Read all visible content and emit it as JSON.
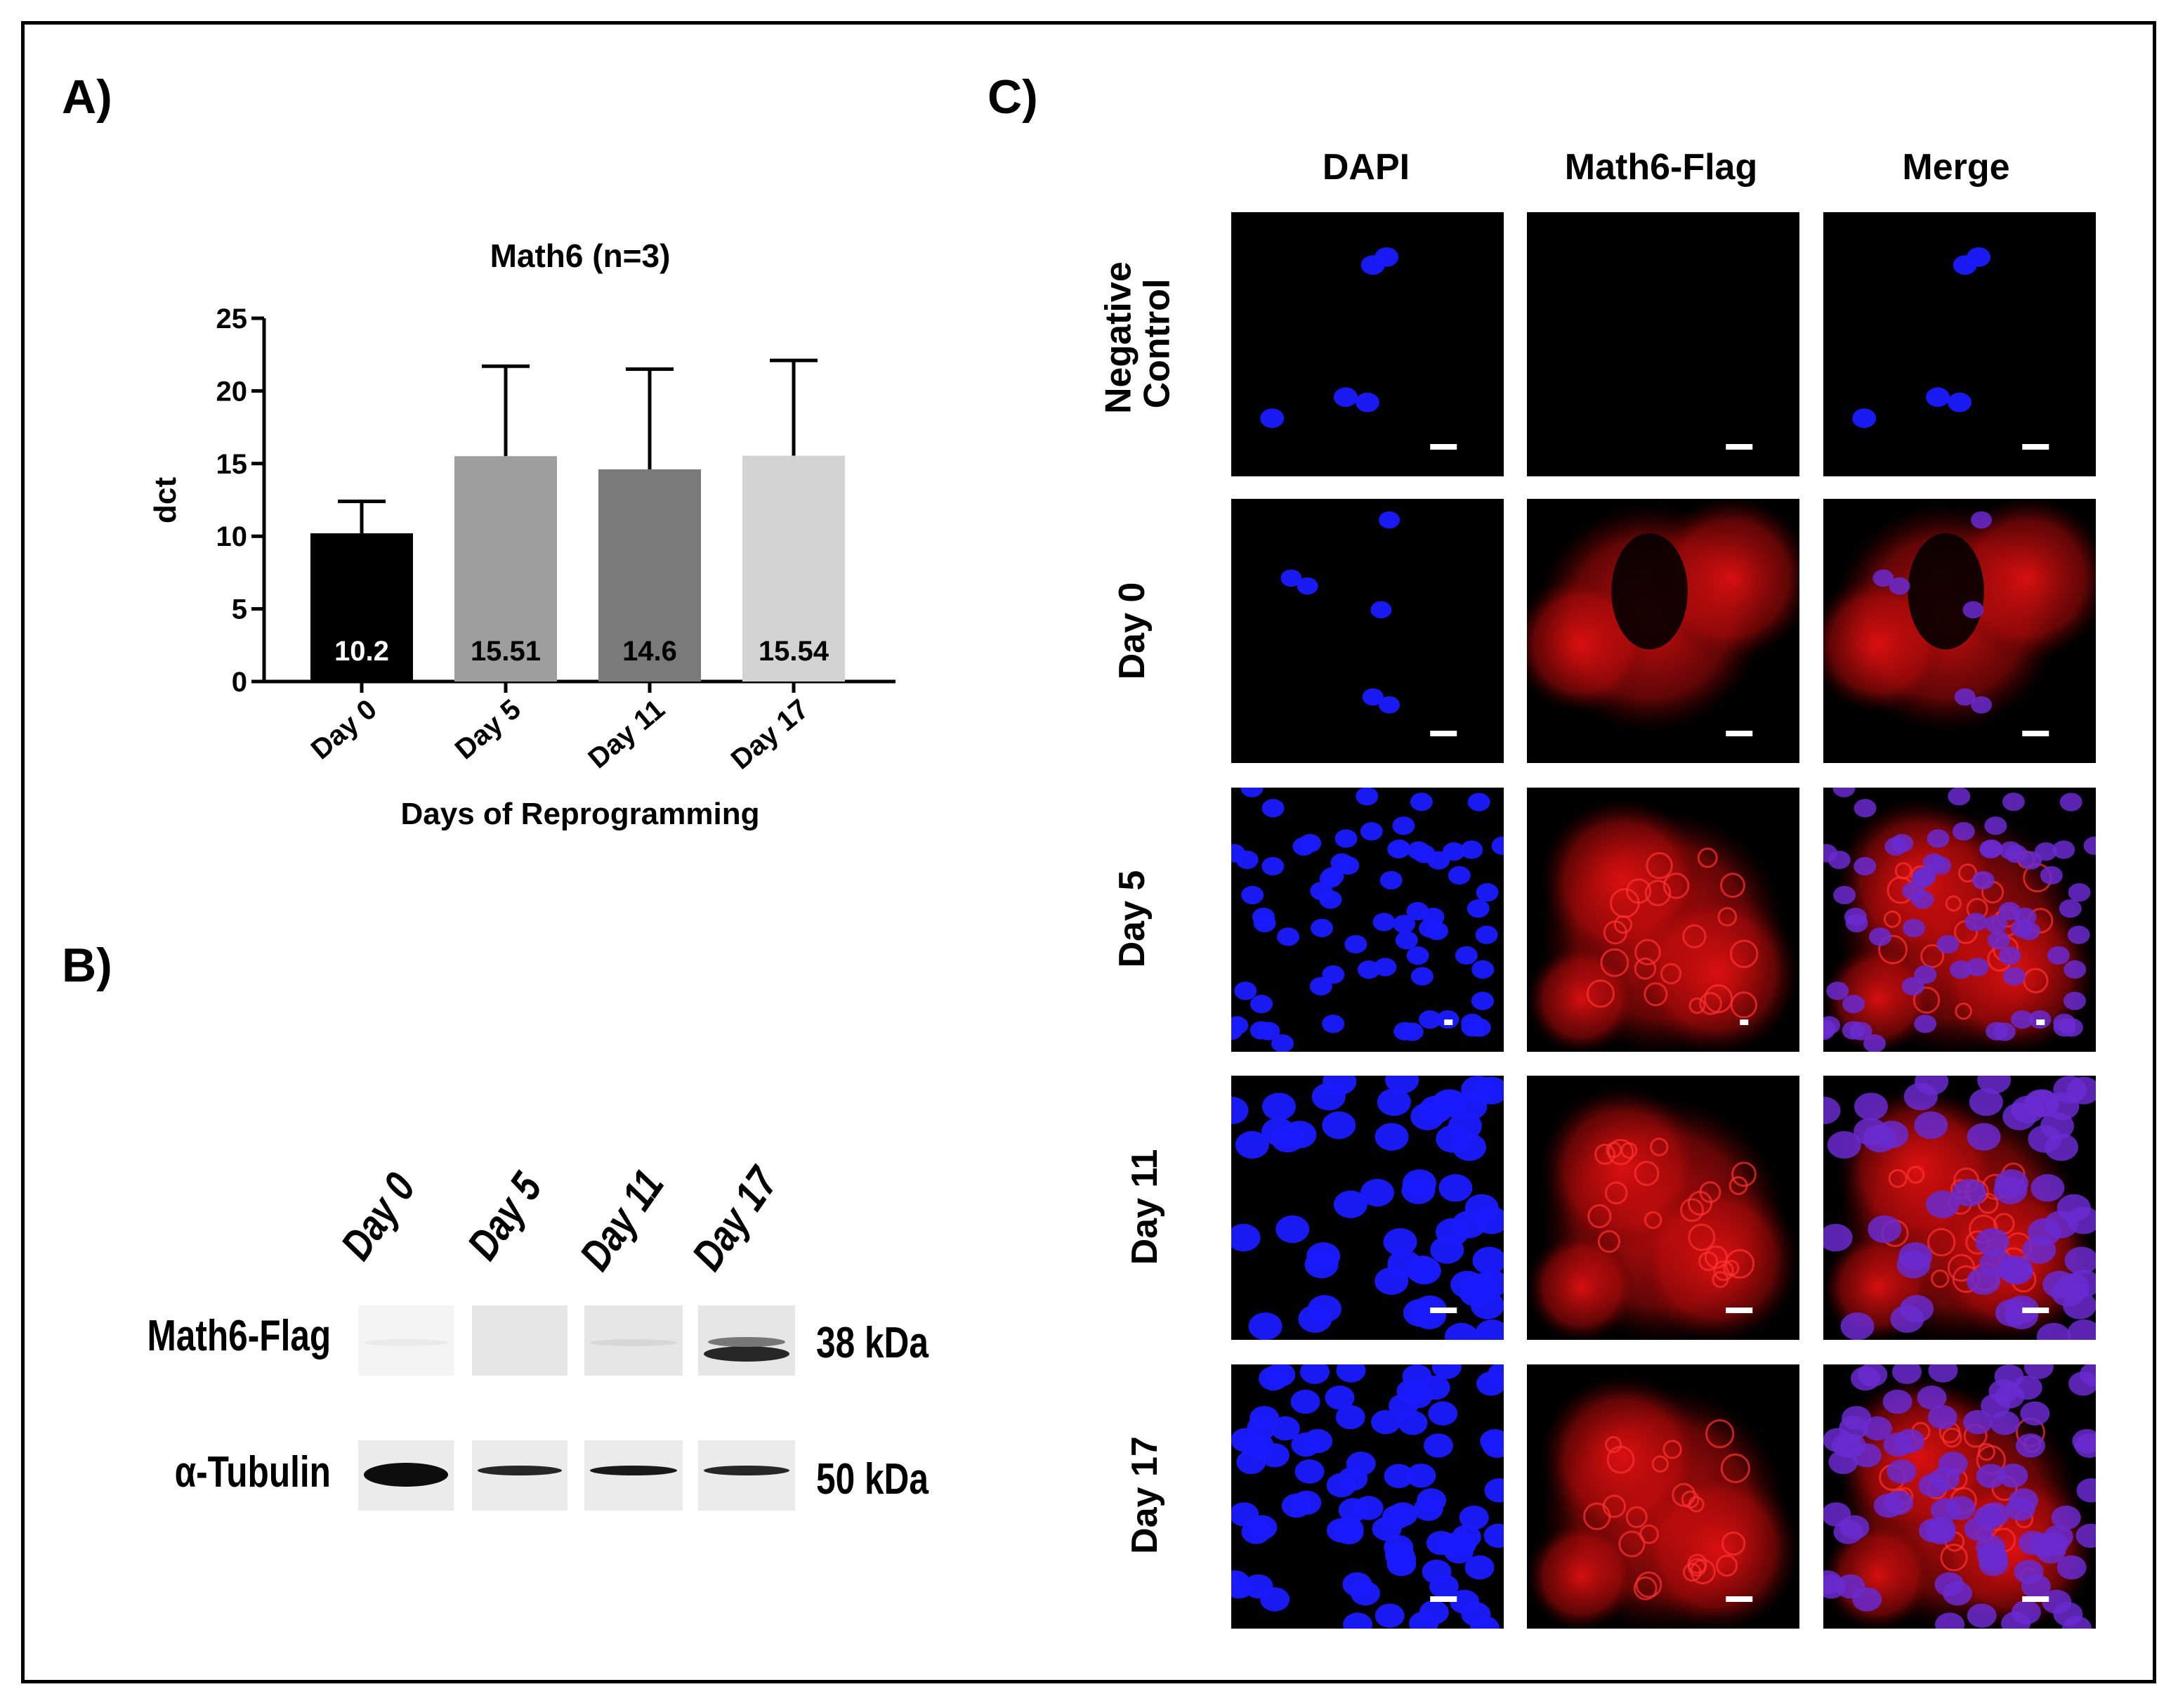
{
  "panel_labels": {
    "a": "A)",
    "b": "B)",
    "c": "C)"
  },
  "chart_data": {
    "type": "bar",
    "title": "Math6 (n=3)",
    "xlabel": "Days of Reprogramming",
    "ylabel": "dct",
    "categories": [
      "Day 0",
      "Day 5",
      "Day 11",
      "Day 17"
    ],
    "series": [
      {
        "values": [
          10.2,
          15.51,
          14.6,
          15.54
        ],
        "error_upper": [
          12.4,
          21.7,
          21.5,
          22.1
        ],
        "value_labels": [
          "10.2",
          "15.51",
          "14.6",
          "15.54"
        ],
        "colors": [
          "#000000",
          "#9e9e9e",
          "#7a7a7a",
          "#d3d3d3"
        ],
        "label_colors": [
          "#ffffff",
          "#000000",
          "#000000",
          "#000000"
        ]
      }
    ],
    "ylim": [
      0,
      25
    ],
    "yticks": [
      "0",
      "5",
      "10",
      "15",
      "20",
      "25"
    ],
    "grid": false
  },
  "western_blot": {
    "lanes": [
      "Day 0",
      "Day 5",
      "Day 11",
      "Day 17"
    ],
    "rows": [
      {
        "protein": "Math6-Flag",
        "size": "38 kDa",
        "band_intensity": [
          0.12,
          0.1,
          0.22,
          0.85
        ]
      },
      {
        "protein": "α-Tubulin",
        "size": "50 kDa",
        "band_intensity": [
          0.95,
          0.85,
          0.9,
          0.85
        ]
      }
    ]
  },
  "microscopy": {
    "columns": [
      "DAPI",
      "Math6-Flag",
      "Merge"
    ],
    "rows": [
      {
        "label_lines": [
          "Negative",
          "Control"
        ]
      },
      {
        "label_lines": [
          "Day 0"
        ]
      },
      {
        "label_lines": [
          "Day 5"
        ]
      },
      {
        "label_lines": [
          "Day 11"
        ]
      },
      {
        "label_lines": [
          "Day 17"
        ]
      }
    ],
    "colors": {
      "background": "#000000",
      "dapi": "#1a1aff",
      "flag": "#e01010",
      "scale_bar": "#ffffff"
    }
  }
}
